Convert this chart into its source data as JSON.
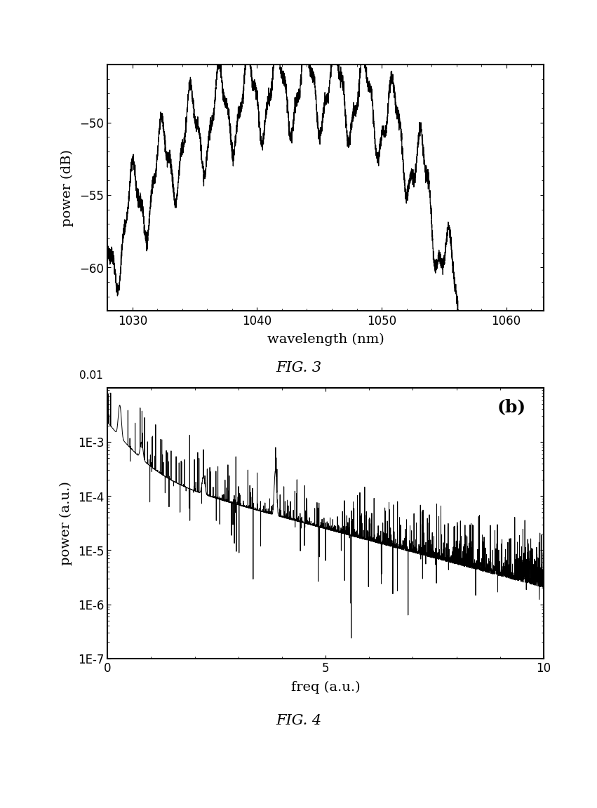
{
  "fig1": {
    "xlabel": "wavelength (nm)",
    "ylabel": "power (dB)",
    "xlim": [
      1028,
      1063
    ],
    "ylim": [
      -63,
      -46
    ],
    "xticks": [
      1030,
      1040,
      1050,
      1060
    ],
    "yticks": [
      -60,
      -55,
      -50
    ],
    "fignum": "FIG. 3"
  },
  "fig2": {
    "title": "(b)",
    "xlabel": "freq (a.u.)",
    "ylabel": "power (a.u.)",
    "xlim": [
      0,
      10
    ],
    "xticks": [
      0,
      5,
      10
    ],
    "yticks_log": [
      "1E-7",
      "1E-6",
      "1E-5",
      "1E-4",
      "1E-3"
    ],
    "yticks_vals": [
      1e-07,
      1e-06,
      1e-05,
      0.0001,
      0.001
    ],
    "ymin": 1e-07,
    "ymax": 0.01,
    "fignum": "FIG. 4"
  },
  "bg_color": "#ffffff",
  "line_color": "#000000"
}
